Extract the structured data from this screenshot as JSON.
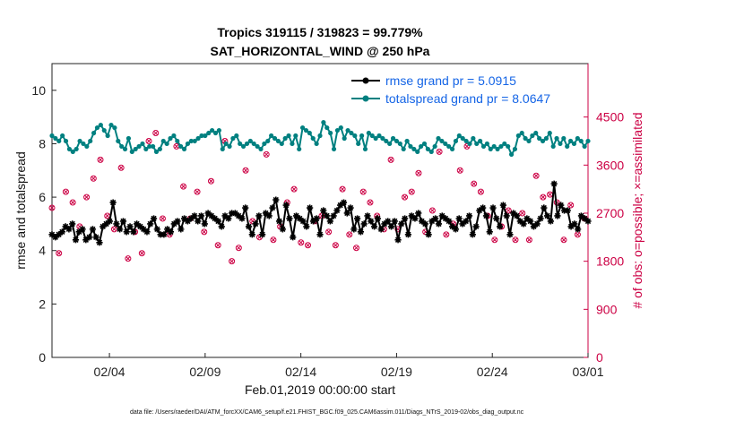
{
  "chart_data": {
    "type": "line",
    "title": [
      "Tropics 319115 / 319823 = 99.779%",
      "SAT_HORIZONTAL_WIND @ 250 hPa"
    ],
    "xlabel": "Feb.01,2019 00:00:00 start",
    "ylabel": "rmse and totalspread",
    "y2label": "# of obs: o=possible; ×=assimilated",
    "xlim": [
      0,
      28
    ],
    "ylim": [
      0,
      11
    ],
    "y2lim": [
      0,
      5500
    ],
    "x_ticks": [
      {
        "value": 3,
        "label": "02/04"
      },
      {
        "value": 8,
        "label": "02/09"
      },
      {
        "value": 13,
        "label": "02/14"
      },
      {
        "value": 18,
        "label": "02/19"
      },
      {
        "value": 23,
        "label": "02/24"
      },
      {
        "value": 28,
        "label": "03/01"
      }
    ],
    "y_ticks": [
      "0",
      "2",
      "4",
      "6",
      "8",
      "10"
    ],
    "y2_ticks": [
      "0",
      "900",
      "1800",
      "2700",
      "3600",
      "4500"
    ],
    "legend": [
      {
        "label": "rmse grand pr = 5.0915",
        "color": "#000000"
      },
      {
        "label": "totalspread grand pr = 8.0647",
        "color": "#008080"
      }
    ],
    "series": [
      {
        "name": "rmse",
        "color": "#000000",
        "values": [
          4.6,
          4.5,
          4.6,
          4.7,
          4.9,
          4.8,
          5.0,
          4.4,
          4.7,
          4.8,
          4.4,
          4.5,
          4.8,
          4.5,
          4.3,
          4.9,
          5.0,
          5.1,
          5.8,
          5.0,
          4.8,
          5.1,
          4.7,
          4.9,
          4.7,
          5.0,
          4.9,
          4.8,
          4.7,
          5.0,
          5.2,
          4.8,
          4.6,
          4.6,
          4.8,
          4.7,
          5.0,
          5.1,
          4.8,
          5.2,
          5.1,
          5.2,
          5.3,
          5.1,
          5.3,
          5.0,
          5.4,
          5.3,
          5.2,
          5.1,
          4.9,
          5.3,
          5.2,
          5.4,
          5.4,
          5.3,
          5.2,
          5.6,
          4.9,
          4.6,
          5.0,
          5.3,
          4.6,
          5.4,
          5.3,
          5.6,
          5.9,
          5.1,
          4.8,
          5.7,
          5.2,
          4.5,
          5.3,
          5.2,
          5.1,
          4.9,
          5.6,
          5.1,
          5.2,
          4.6,
          5.5,
          5.3,
          5.1,
          5.3,
          5.5,
          5.7,
          5.8,
          5.4,
          5.6,
          4.8,
          5.2,
          4.7,
          5.0,
          5.3,
          5.1,
          4.9,
          5.2,
          4.8,
          5.0,
          5.1,
          4.9,
          5.1,
          4.4,
          5.0,
          5.2,
          4.6,
          5.3,
          5.2,
          5.4,
          5.1,
          5.0,
          4.6,
          5.1,
          5.2,
          5.0,
          5.3,
          5.2,
          5.1,
          4.9,
          4.8,
          5.2,
          5.0,
          5.1,
          5.3,
          4.6,
          4.9,
          5.5,
          5.6,
          5.3,
          4.7,
          5.6,
          5.2,
          4.9,
          5.7,
          5.3,
          4.6,
          5.4,
          5.3,
          5.1,
          5.0,
          5.2,
          5.1,
          4.9,
          5.0,
          5.2,
          5.6,
          5.3,
          5.1,
          6.5,
          5.3,
          5.7,
          5.5,
          5.5,
          4.9,
          5.0,
          4.8,
          5.3,
          5.2,
          5.1
        ]
      },
      {
        "name": "totalspread",
        "color": "#008080",
        "values": [
          8.3,
          8.2,
          8.1,
          8.3,
          8.1,
          7.8,
          7.7,
          7.8,
          8.1,
          8.0,
          7.9,
          8.1,
          8.4,
          8.6,
          8.7,
          8.5,
          8.3,
          8.7,
          8.6,
          8.1,
          7.9,
          7.8,
          8.2,
          7.7,
          7.8,
          7.9,
          8.0,
          7.8,
          7.9,
          7.9,
          7.7,
          7.8,
          8.1,
          8.0,
          8.2,
          8.3,
          8.1,
          7.9,
          7.8,
          8.0,
          8.1,
          8.1,
          8.2,
          8.3,
          8.3,
          8.4,
          8.5,
          8.4,
          8.5,
          7.8,
          8.0,
          7.9,
          8.2,
          8.3,
          8.0,
          7.9,
          8.0,
          8.1,
          8.0,
          7.9,
          7.8,
          8.0,
          8.1,
          8.3,
          8.2,
          8.1,
          8.0,
          8.2,
          8.3,
          8.0,
          8.3,
          7.8,
          8.6,
          8.5,
          8.4,
          8.2,
          8.0,
          8.3,
          8.8,
          8.6,
          8.4,
          7.8,
          8.5,
          8.6,
          8.2,
          8.5,
          8.4,
          8.3,
          8.0,
          8.3,
          7.8,
          8.4,
          8.3,
          8.2,
          8.3,
          8.2,
          8.1,
          8.0,
          8.2,
          8.1,
          8.0,
          7.8,
          8.1,
          7.9,
          7.8,
          7.7,
          7.9,
          8.0,
          7.8,
          7.7,
          7.9,
          8.2,
          8.1,
          8.0,
          7.9,
          7.8,
          8.1,
          8.3,
          8.2,
          8.1,
          8.0,
          8.2,
          8.0,
          8.1,
          7.9,
          8.0,
          7.8,
          7.9,
          7.8,
          7.9,
          8.0,
          7.9,
          7.6,
          7.8,
          8.3,
          8.4,
          8.2,
          8.1,
          8.3,
          8.4,
          8.2,
          8.1,
          8.2,
          8.4,
          7.9,
          8.2,
          8.0,
          8.2,
          7.9,
          8.1,
          8.0,
          8.2,
          8.1,
          7.9,
          8.1
        ]
      },
      {
        "name": "obs possible",
        "axis": "right",
        "color": "#cc0044",
        "values": [
          2800,
          2100,
          1950,
          2150,
          3100,
          2050,
          2900,
          3250,
          2450,
          2200,
          3000,
          2150,
          3350,
          2500,
          3700,
          4200,
          2650,
          1900,
          2400,
          3700,
          3550,
          4150,
          1850,
          1550,
          2350,
          3900,
          1950,
          2000,
          4050,
          2800,
          4200,
          2650,
          2600,
          3450,
          2300,
          3250,
          3950,
          2150,
          3200,
          2300,
          2600,
          1950,
          3100,
          3600,
          2350,
          2800,
          3300,
          2400,
          2100,
          3650,
          4050,
          2300,
          1800,
          2900,
          2050,
          3150,
          3500,
          2700,
          2550,
          3550,
          2250,
          3350,
          3800,
          1800,
          2200,
          3750,
          2450,
          1850,
          2900,
          3400,
          3150,
          2650,
          2150,
          3850,
          2100,
          4050,
          2550,
          3450,
          2650,
          2550,
          2350,
          3800,
          2100,
          2800,
          3150,
          3800,
          2300,
          3550,
          2050,
          3000,
          3100,
          1700,
          2900,
          3250,
          2650,
          2750,
          2400,
          2150,
          3700,
          2050,
          2400,
          2600,
          3000,
          3900,
          3100,
          1850,
          3450,
          2400,
          2350,
          3200,
          2750,
          2600,
          3850,
          2800,
          2300,
          2750,
          2500,
          3050,
          3500,
          2650,
          3950,
          1850,
          3250,
          2050,
          3100,
          2900,
          2650,
          3200,
          2200,
          3500,
          2450,
          2500,
          2750,
          2950,
          2200,
          3300,
          2700,
          2350,
          2200,
          2500,
          3400,
          2450,
          3000,
          3600,
          3050,
          2400,
          2900,
          2550,
          2200,
          2750,
          2850,
          2500,
          2300,
          2700,
          2600,
          2400
        ]
      }
    ]
  },
  "footer": "data file: /Users/raeder/DAI/ATM_forcXX/CAM6_setup/f.e21.FHIST_BGC.f09_025.CAM6assim.011/Diags_NTrS_2019-02/obs_diag_output.nc"
}
